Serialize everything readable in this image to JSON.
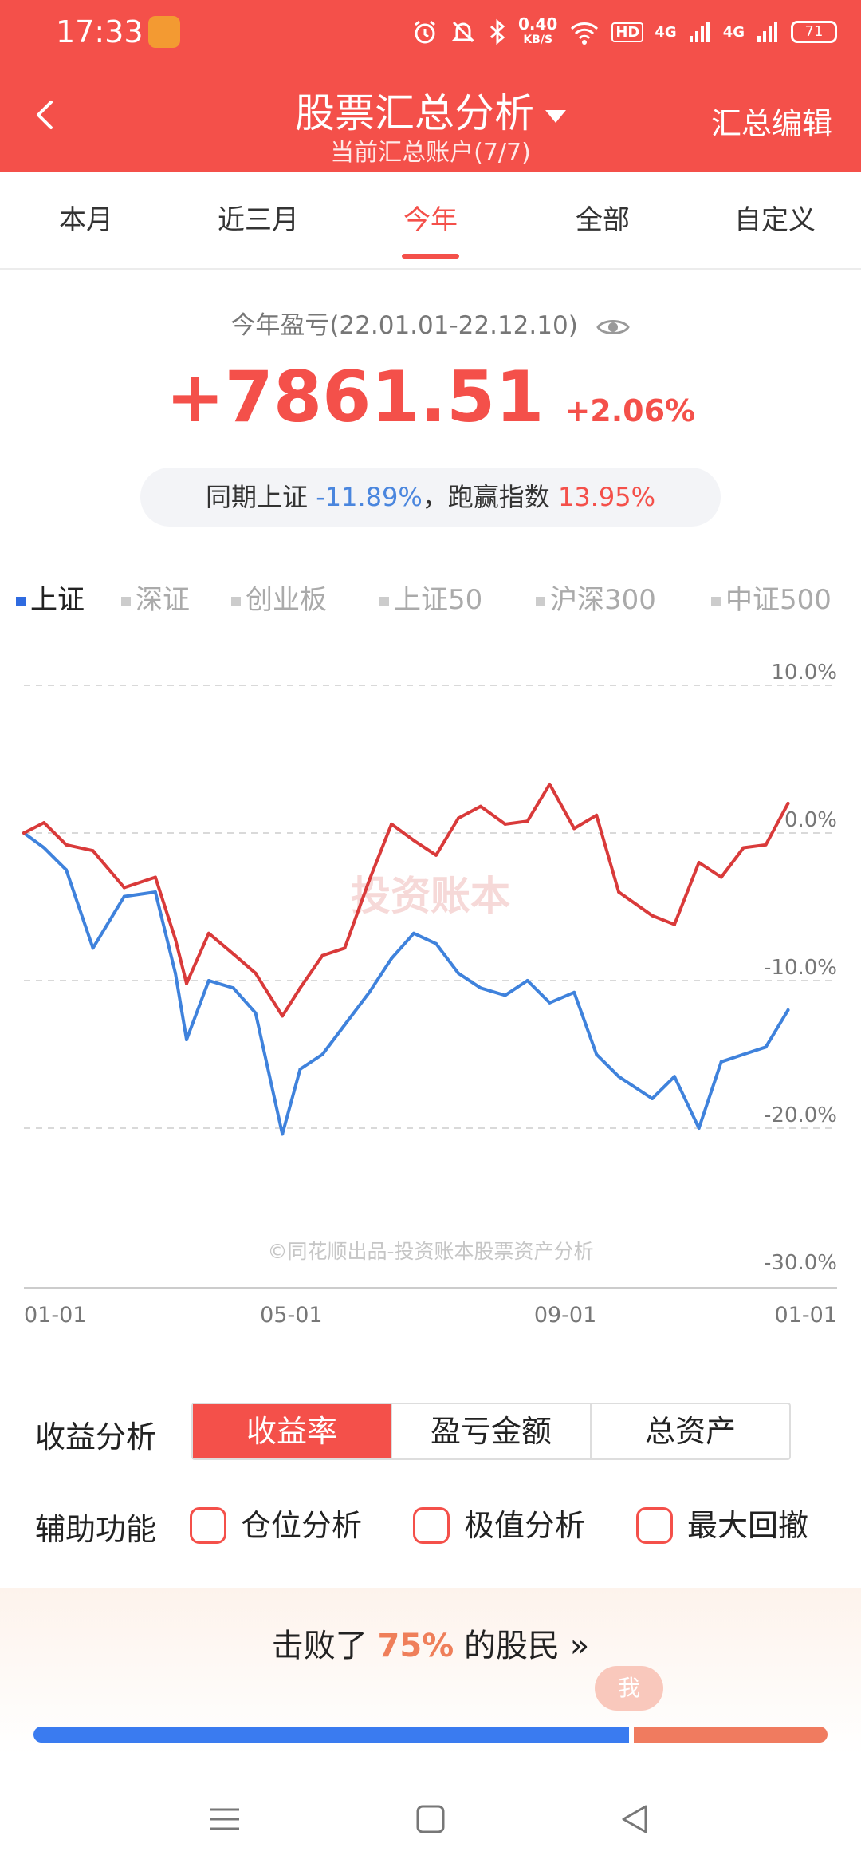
{
  "status_bar": {
    "time": "17:33",
    "net_speed_value": "0.40",
    "net_speed_unit": "KB/S",
    "hd_label": "HD",
    "network_1": "4G",
    "network_2": "4G",
    "battery": "71",
    "icons": [
      "alarm-icon",
      "mute-icon",
      "bluetooth-icon",
      "wifi-icon",
      "signal-icon"
    ]
  },
  "header": {
    "title": "股票汇总分析",
    "subtitle": "当前汇总账户(7/7)",
    "edit_label": "汇总编辑",
    "colors": {
      "brand": "#f4504a"
    }
  },
  "tabs": [
    {
      "label": "本月",
      "active": false
    },
    {
      "label": "近三月",
      "active": false
    },
    {
      "label": "今年",
      "active": true
    },
    {
      "label": "全部",
      "active": false
    },
    {
      "label": "自定义",
      "active": false
    }
  ],
  "summary": {
    "label": "今年盈亏(22.01.01-22.12.10)",
    "amount": "+7861.51",
    "percent": "+2.06%",
    "compare_prefix": "同期上证",
    "compare_index_value": "-11.89%",
    "compare_mid": "，跑赢指数",
    "compare_beat_value": "13.95%"
  },
  "indices": [
    {
      "label": "上证",
      "active": true
    },
    {
      "label": "深证",
      "active": false
    },
    {
      "label": "创业板",
      "active": false
    },
    {
      "label": "上证50",
      "active": false
    },
    {
      "label": "沪深300",
      "active": false
    },
    {
      "label": "中证500",
      "active": false
    }
  ],
  "chart_watermark": "投资账本",
  "chart_copyright": "©同花顺出品-投资账本股票资产分析",
  "chart_data": {
    "type": "line",
    "ytick_labels": [
      "10.0%",
      "0.0%",
      "-10.0%",
      "-20.0%",
      "-30.0%"
    ],
    "ylim": [
      -30,
      10
    ],
    "xtick_labels": [
      "01-01",
      "05-01",
      "09-01",
      "01-01"
    ],
    "x": [
      "2022-01-01",
      "2022-01-10",
      "2022-01-20",
      "2022-02-01",
      "2022-02-15",
      "2022-03-01",
      "2022-03-10",
      "2022-03-15",
      "2022-03-25",
      "2022-04-05",
      "2022-04-15",
      "2022-04-27",
      "2022-05-05",
      "2022-05-15",
      "2022-05-25",
      "2022-06-05",
      "2022-06-15",
      "2022-06-25",
      "2022-07-05",
      "2022-07-15",
      "2022-07-25",
      "2022-08-05",
      "2022-08-15",
      "2022-08-25",
      "2022-09-05",
      "2022-09-15",
      "2022-09-25",
      "2022-10-10",
      "2022-10-20",
      "2022-10-31",
      "2022-11-10",
      "2022-11-20",
      "2022-11-30",
      "2022-12-10"
    ],
    "series": [
      {
        "color": "#d93a3a",
        "values": [
          0.0,
          0.7,
          -0.8,
          -1.2,
          -3.7,
          -3.0,
          -7.2,
          -10.2,
          -6.8,
          -8.2,
          -9.5,
          -12.4,
          -10.5,
          -8.3,
          -7.8,
          -3.2,
          0.6,
          -0.5,
          -1.5,
          1.0,
          1.8,
          0.6,
          0.8,
          3.3,
          0.3,
          1.2,
          -4.0,
          -5.6,
          -6.2,
          -2.0,
          -3.0,
          -1.0,
          -0.8,
          2.0
        ]
      },
      {
        "color": "#3f82dc",
        "values": [
          0.0,
          -1.0,
          -2.5,
          -7.8,
          -4.3,
          -4.0,
          -9.5,
          -14.0,
          -10.0,
          -10.5,
          -12.2,
          -20.4,
          -16.0,
          -15.0,
          -13.0,
          -10.8,
          -8.5,
          -6.8,
          -7.5,
          -9.5,
          -10.5,
          -11.0,
          -10.0,
          -11.5,
          -10.8,
          -15.0,
          -16.5,
          -18.0,
          -16.5,
          -20.0,
          -15.5,
          -15.0,
          -14.5,
          -12.0
        ]
      }
    ]
  },
  "analysis": {
    "label": "收益分析",
    "options": [
      {
        "label": "收益率",
        "active": true
      },
      {
        "label": "盈亏金额",
        "active": false
      },
      {
        "label": "总资产",
        "active": false
      }
    ]
  },
  "aux": {
    "label": "辅助功能",
    "options": [
      "仓位分析",
      "极值分析",
      "最大回撤"
    ]
  },
  "beat": {
    "prefix": "击败了",
    "percent": "75%",
    "suffix": "的股民",
    "arrow": "»",
    "me_label": "我",
    "ratio": 0.75
  }
}
